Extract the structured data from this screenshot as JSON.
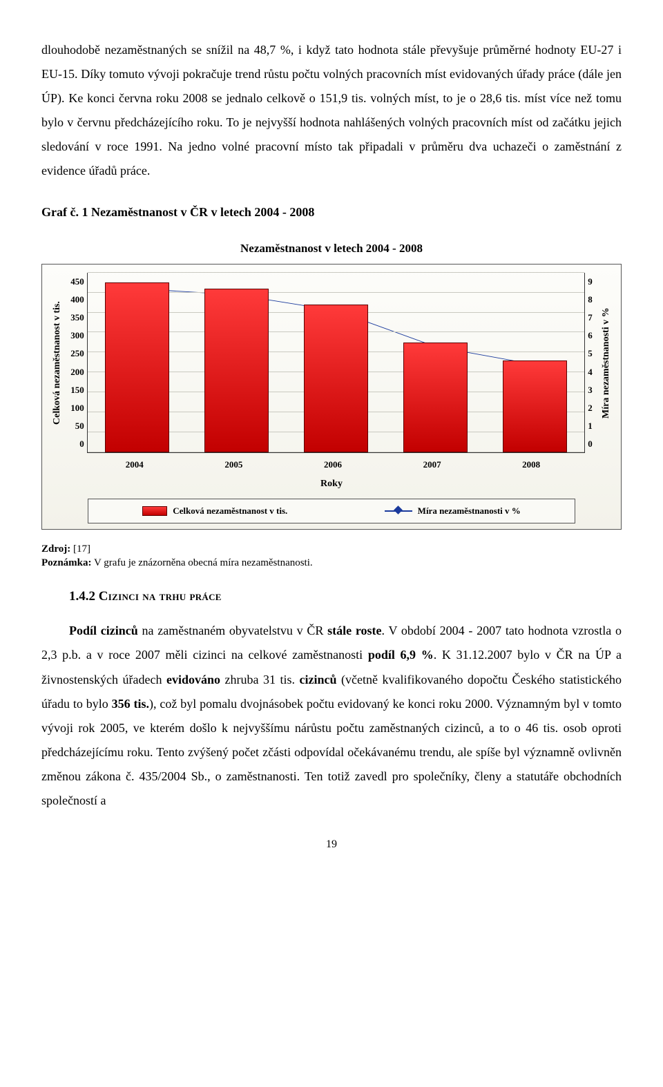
{
  "para1": "dlouhodobě nezaměstnaných se snížil na 48,7 %, i když tato hodnota stále převyšuje průměrné hodnoty EU-27 i EU-15. Díky tomuto vývoji pokračuje trend růstu počtu volných pracovních míst evidovaných úřady práce (dále jen ÚP). Ke konci června roku 2008 se jednalo celkově o 151,9 tis. volných míst, to je o 28,6 tis. míst více než tomu bylo v červnu předcházejícího roku. To je nejvyšší hodnota nahlášených volných pracovních míst od začátku jejich sledování v roce 1991. Na jedno volné pracovní místo tak připadali v průměru dva uchazeči o zaměstnání z evidence úřadů práce.",
  "caption": "Graf č. 1 Nezaměstnanost v ČR v letech 2004 - 2008",
  "chart": {
    "title": "Nezaměstnanost v letech  2004 - 2008",
    "ylabel_left": "Celková nezaměstnanost v tis.",
    "ylabel_right": "Míra nezaměstnanosti v %",
    "xlabel": "Roky",
    "categories": [
      "2004",
      "2005",
      "2006",
      "2007",
      "2008"
    ],
    "bars_values": [
      425,
      410,
      370,
      275,
      230
    ],
    "line_values": [
      8.2,
      7.9,
      7.1,
      5.3,
      4.4
    ],
    "y_left": {
      "min": 0,
      "max": 450,
      "step": 50,
      "ticks": [
        "450",
        "400",
        "350",
        "300",
        "250",
        "200",
        "150",
        "100",
        "50",
        "0"
      ]
    },
    "y_right": {
      "min": 0,
      "max": 9,
      "step": 1,
      "ticks": [
        "9",
        "8",
        "7",
        "6",
        "5",
        "4",
        "3",
        "2",
        "1",
        "0"
      ]
    },
    "bar_color_top": "#ff3a3a",
    "bar_color_bottom": "#c20000",
    "bar_border": "#5b0000",
    "line_color": "#1a3a9c",
    "background_top": "#fdfdfa",
    "background_bottom": "#f3f2ea",
    "grid_color": "#c9c9c0",
    "bar_width_pct": 13,
    "legend": {
      "bar": "Celková nezaměstnanost v tis.",
      "line": "Míra nezaměstnanosti v %"
    }
  },
  "source_label": "Zdroj:",
  "source_ref": "[17]",
  "source_note_label": "Poznámka:",
  "source_note": "V grafu je znázorněna obecná míra nezaměstnanosti.",
  "section": {
    "num": "1.4.2",
    "name": "Cizinci na trhu práce"
  },
  "para2_lead_b1": "Podíl cizinců",
  "para2_mid1": " na zaměstnaném obyvatelstvu v ČR ",
  "para2_b2": "stále roste",
  "para2_mid2": ". V období 2004 - 2007 tato hodnota vzrostla o 2,3 p.b. a v roce 2007 měli cizinci na celkové zaměstnanosti ",
  "para2_b3": "podíl 6,9 %",
  "para2_mid3": ".  K 31.12.2007 bylo v ČR na ÚP a živnostenských úřadech ",
  "para2_b4": "evidováno",
  "para2_mid4": " zhruba 31 tis. ",
  "para2_b5": "cizinců",
  "para2_mid5": " (včetně kvalifikovaného dopočtu Českého statistického úřadu to bylo ",
  "para2_b6": "356 tis.",
  "para2_mid6": "), což byl pomalu dvojnásobek počtu evidovaný ke konci roku 2000. Významným byl v tomto vývoji rok 2005, ve kterém došlo k nejvyššímu nárůstu počtu zaměstnaných cizinců, a to o 46 tis. osob oproti předcházejícímu roku. Tento zvýšený počet zčásti odpovídal očekávanému trendu, ale spíše byl významně ovlivněn změnou zákona č. 435/2004 Sb., o zaměstnanosti. Ten totiž zavedl pro společníky, členy a statutáře obchodních společností a",
  "page_number": "19"
}
